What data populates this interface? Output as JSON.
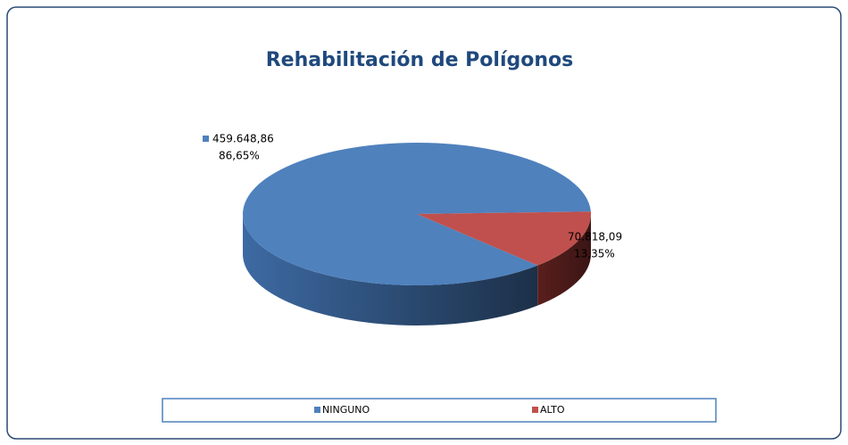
{
  "chart_data": {
    "type": "pie3d",
    "title": "Rehabilitación de Polígonos",
    "categories": [
      "NINGUNO",
      "ALTO"
    ],
    "values": [
      459648.86,
      70818.09
    ],
    "value_labels": [
      "459.648,86",
      "70.818,09"
    ],
    "percents": [
      86.65,
      13.35
    ],
    "percent_labels": [
      "86,65%",
      "13,35%"
    ],
    "colors": [
      "#4f81bd",
      "#c0504d"
    ],
    "legend": "bottom"
  }
}
